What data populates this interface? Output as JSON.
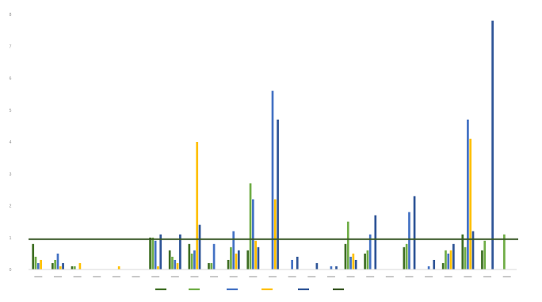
{
  "chart_data": {
    "type": "bar",
    "title": "",
    "xlabel": "",
    "ylabel": "",
    "ylim": [
      0,
      8
    ],
    "yticks": [
      0,
      1,
      2,
      3,
      4,
      5,
      6,
      7,
      8
    ],
    "grid": false,
    "legend_position": "bottom",
    "colors": [
      "#3f6f24",
      "#70ad47",
      "#4472c4",
      "#ffc000",
      "#2f5597",
      "#375623"
    ],
    "categories": [
      "c1",
      "c2",
      "c3",
      "c4",
      "c5",
      "c6",
      "c7",
      "c8",
      "c9",
      "c10",
      "c11",
      "c12",
      "c13",
      "c14",
      "c15",
      "c16",
      "c17",
      "c18",
      "c19",
      "c20",
      "c21",
      "c22",
      "c23",
      "c24",
      "c25"
    ],
    "series": [
      {
        "values": [
          0.8,
          0.2,
          0.1,
          0,
          0,
          0,
          1.0,
          0.6,
          0.8,
          0.2,
          0.3,
          0.6,
          0,
          0,
          0,
          0,
          0.8,
          0.5,
          0,
          0.7,
          0,
          0.2,
          1.1,
          0.6,
          0
        ]
      },
      {
        "values": [
          0.4,
          0.3,
          0.1,
          0,
          0,
          0,
          1.0,
          0.4,
          0.5,
          0.2,
          0.7,
          2.7,
          0,
          0,
          0,
          0,
          1.5,
          0.6,
          0,
          0.8,
          0,
          0.6,
          0.7,
          0.9,
          1.1
        ]
      },
      {
        "values": [
          0.2,
          0.5,
          0,
          0,
          0,
          0,
          0.9,
          0.3,
          0.6,
          0.8,
          1.2,
          2.2,
          5.6,
          0.3,
          0,
          0.1,
          0.4,
          1.1,
          0,
          1.8,
          0.1,
          0.5,
          4.7,
          0,
          0
        ]
      },
      {
        "values": [
          0.3,
          0.1,
          0.2,
          0,
          0.1,
          0,
          0.1,
          0.2,
          4.0,
          0,
          0.5,
          0.9,
          2.2,
          0,
          0,
          0,
          0.5,
          0,
          0,
          0,
          0,
          0.6,
          4.1,
          0,
          0
        ]
      },
      {
        "values": [
          0,
          0.2,
          0,
          0,
          0,
          0,
          1.1,
          1.1,
          1.4,
          0,
          0.6,
          0.7,
          4.7,
          0.4,
          0.2,
          0.1,
          0.3,
          1.7,
          0,
          2.3,
          0.3,
          0.8,
          1.2,
          7.8,
          0
        ]
      }
    ],
    "hline": {
      "value": 0.95
    },
    "legend_entries": [
      "",
      "",
      "",
      "",
      "",
      ""
    ]
  }
}
